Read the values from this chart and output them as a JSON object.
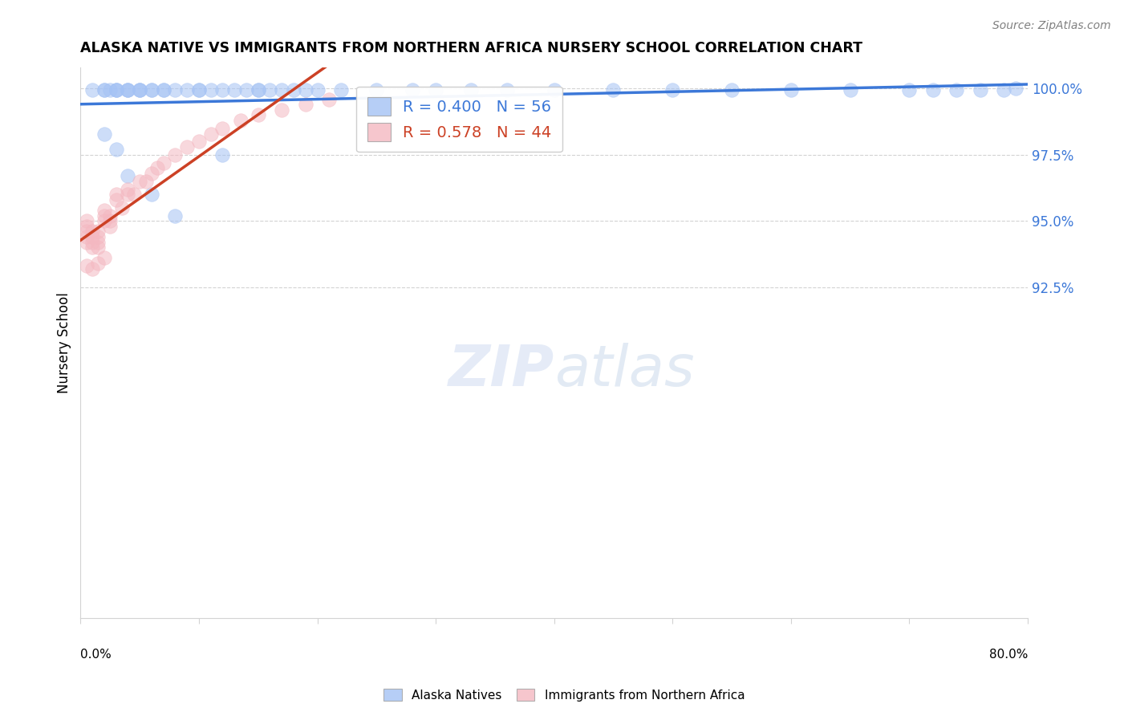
{
  "title": "ALASKA NATIVE VS IMMIGRANTS FROM NORTHERN AFRICA NURSERY SCHOOL CORRELATION CHART",
  "source": "Source: ZipAtlas.com",
  "ylabel": "Nursery School",
  "blue_R": 0.4,
  "blue_N": 56,
  "pink_R": 0.578,
  "pink_N": 44,
  "blue_color": "#a4c2f4",
  "pink_color": "#f4b8c1",
  "blue_line_color": "#3c78d8",
  "pink_line_color": "#cc4125",
  "legend_label_blue": "Alaska Natives",
  "legend_label_pink": "Immigrants from Northern Africa",
  "xmin": 0.0,
  "xmax": 0.8,
  "ymin": 0.8,
  "ymax": 1.008,
  "ytick_values": [
    1.0,
    0.975,
    0.95,
    0.925
  ],
  "ytick_labels": [
    "100.0%",
    "97.5%",
    "95.0%",
    "92.5%"
  ],
  "blue_x": [
    0.01,
    0.02,
    0.02,
    0.025,
    0.03,
    0.03,
    0.03,
    0.04,
    0.04,
    0.04,
    0.05,
    0.05,
    0.05,
    0.06,
    0.06,
    0.07,
    0.07,
    0.08,
    0.09,
    0.1,
    0.1,
    0.11,
    0.12,
    0.13,
    0.14,
    0.15,
    0.15,
    0.16,
    0.17,
    0.18,
    0.19,
    0.2,
    0.22,
    0.25,
    0.28,
    0.3,
    0.33,
    0.36,
    0.4,
    0.45,
    0.5,
    0.55,
    0.6,
    0.65,
    0.7,
    0.72,
    0.74,
    0.76,
    0.78,
    0.02,
    0.03,
    0.04,
    0.06,
    0.08,
    0.12,
    0.79
  ],
  "blue_y": [
    0.9995,
    0.9995,
    0.9995,
    0.9995,
    0.9995,
    0.9995,
    0.9995,
    0.9995,
    0.9995,
    0.9995,
    0.9995,
    0.9995,
    0.9995,
    0.9995,
    0.9995,
    0.9995,
    0.9995,
    0.9995,
    0.9995,
    0.9995,
    0.9995,
    0.9995,
    0.9995,
    0.9995,
    0.9995,
    0.9995,
    0.9995,
    0.9995,
    0.9995,
    0.9995,
    0.9995,
    0.9995,
    0.9995,
    0.9995,
    0.9995,
    0.9995,
    0.9995,
    0.9995,
    0.9995,
    0.9995,
    0.9995,
    0.9995,
    0.9995,
    0.9995,
    0.9995,
    0.9995,
    0.9995,
    0.9995,
    0.9995,
    0.983,
    0.977,
    0.967,
    0.96,
    0.952,
    0.975,
    1.0
  ],
  "pink_x": [
    0.005,
    0.005,
    0.005,
    0.005,
    0.005,
    0.01,
    0.01,
    0.01,
    0.01,
    0.015,
    0.015,
    0.015,
    0.015,
    0.02,
    0.02,
    0.02,
    0.025,
    0.025,
    0.025,
    0.03,
    0.03,
    0.035,
    0.04,
    0.04,
    0.045,
    0.05,
    0.055,
    0.06,
    0.065,
    0.07,
    0.08,
    0.09,
    0.1,
    0.11,
    0.12,
    0.135,
    0.15,
    0.17,
    0.19,
    0.21,
    0.005,
    0.01,
    0.015,
    0.02
  ],
  "pink_y": [
    0.942,
    0.944,
    0.946,
    0.948,
    0.95,
    0.94,
    0.942,
    0.944,
    0.946,
    0.94,
    0.942,
    0.944,
    0.946,
    0.95,
    0.952,
    0.954,
    0.948,
    0.95,
    0.952,
    0.958,
    0.96,
    0.955,
    0.96,
    0.962,
    0.96,
    0.965,
    0.965,
    0.968,
    0.97,
    0.972,
    0.975,
    0.978,
    0.98,
    0.983,
    0.985,
    0.988,
    0.99,
    0.992,
    0.994,
    0.996,
    0.933,
    0.932,
    0.934,
    0.936
  ]
}
